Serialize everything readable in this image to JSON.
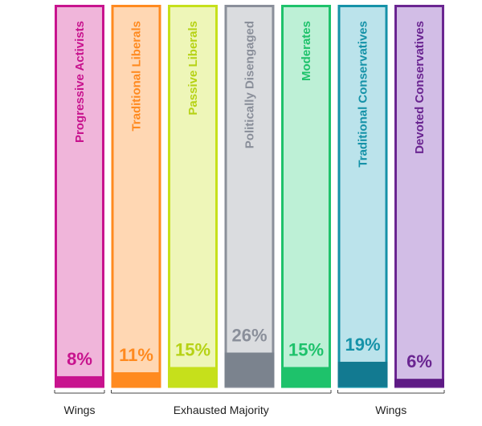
{
  "chart_data": {
    "type": "bar",
    "title": "",
    "xlabel": "",
    "ylabel": "",
    "ylim": [
      0,
      100
    ],
    "categories": [
      "Progressive Activists",
      "Traditional Liberals",
      "Passive Liberals",
      "Politically Disengaged",
      "Moderates",
      "Traditional Conservatives",
      "Devoted Conservatives"
    ],
    "values": [
      8,
      11,
      15,
      26,
      15,
      19,
      6
    ],
    "value_labels": [
      "8%",
      "11%",
      "15%",
      "26%",
      "15%",
      "19%",
      "6%"
    ],
    "colors": [
      {
        "border": "#c8138e",
        "fill": "#f0b5da",
        "solid": "#c8138e",
        "text": "#c8138e"
      },
      {
        "border": "#ff8a1f",
        "fill": "#ffd7b3",
        "solid": "#ff8a1f",
        "text": "#ff8a1f"
      },
      {
        "border": "#c6e01b",
        "fill": "#eef6b8",
        "solid": "#c6e01b",
        "text": "#b6d215"
      },
      {
        "border": "#8a8f9a",
        "fill": "#dadcdf",
        "solid": "#7b838e",
        "text": "#8a8f9a"
      },
      {
        "border": "#1ec26b",
        "fill": "#bdf0d6",
        "solid": "#1ec26b",
        "text": "#1ec26b"
      },
      {
        "border": "#1592a8",
        "fill": "#bbe3eb",
        "solid": "#127a91",
        "text": "#1592a8"
      },
      {
        "border": "#6a2591",
        "fill": "#d2bde6",
        "solid": "#5e1a85",
        "text": "#6a2591"
      }
    ],
    "groups": [
      {
        "label": "Wings",
        "from": 0,
        "to": 0
      },
      {
        "label": "Exhausted Majority",
        "from": 1,
        "to": 4
      },
      {
        "label": "Wings",
        "from": 5,
        "to": 6
      }
    ]
  }
}
